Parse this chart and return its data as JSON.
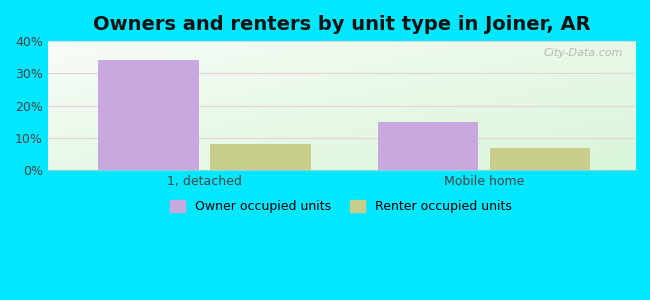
{
  "title": "Owners and renters by unit type in Joiner, AR",
  "categories": [
    "1, detached",
    "Mobile home"
  ],
  "owner_values": [
    34,
    15
  ],
  "renter_values": [
    8,
    7
  ],
  "owner_color": "#c9a8e0",
  "renter_color": "#c8cd8a",
  "ylim": [
    0,
    40
  ],
  "yticks": [
    0,
    10,
    20,
    30,
    40
  ],
  "ytick_labels": [
    "0%",
    "10%",
    "20%",
    "30%",
    "40%"
  ],
  "bar_width": 0.18,
  "group_positions": [
    0.28,
    0.78
  ],
  "legend_owner": "Owner occupied units",
  "legend_renter": "Renter occupied units",
  "bg_outer": "#00e8ff",
  "watermark": "City-Data.com",
  "title_fontsize": 14,
  "axis_fontsize": 9,
  "xlim": [
    0.0,
    1.05
  ]
}
